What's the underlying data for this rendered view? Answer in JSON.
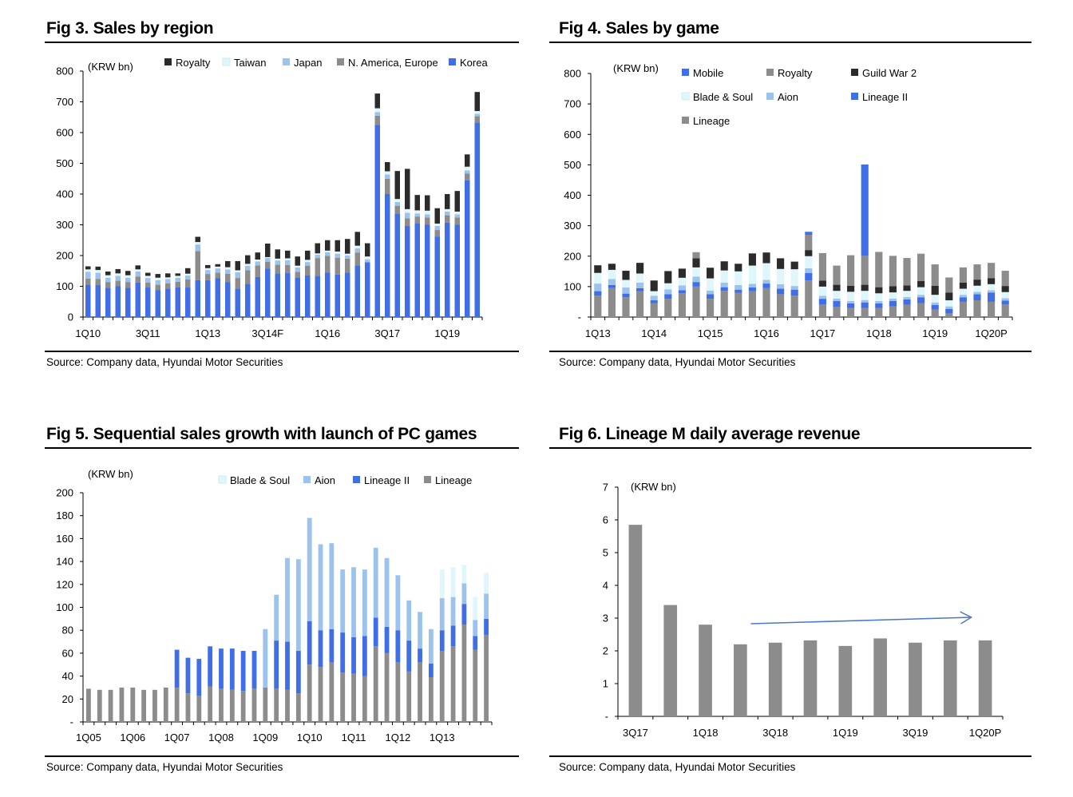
{
  "figures": [
    {
      "title": "Fig 3. Sales by region",
      "source": "Source: Company data, Hyundai Motor Securities",
      "chart_data": {
        "type": "bar",
        "stacked": true,
        "unit_label": "(KRW bn)",
        "yticks": [
          "0",
          "100",
          "200",
          "300",
          "400",
          "500",
          "600",
          "700",
          "800"
        ],
        "ylim": [
          0,
          800
        ],
        "xtick_labels": [
          {
            "i": 0,
            "label": "1Q10"
          },
          {
            "i": 6,
            "label": "3Q11"
          },
          {
            "i": 12,
            "label": "1Q13"
          },
          {
            "i": 18,
            "label": "3Q14F"
          },
          {
            "i": 24,
            "label": "1Q16"
          },
          {
            "i": 30,
            "label": "3Q17"
          },
          {
            "i": 36,
            "label": "1Q19"
          }
        ],
        "legend": [
          {
            "name": "Royalty",
            "color": "#2b2b2b"
          },
          {
            "name": "Taiwan",
            "color": "#dff7fb"
          },
          {
            "name": "Japan",
            "color": "#9cc3ee"
          },
          {
            "name": "N. America, Europe",
            "color": "#8c8c8c"
          },
          {
            "name": "Korea",
            "color": "#3f6ee6"
          }
        ],
        "series": [
          {
            "name": "Korea",
            "color": "#3f6ee6",
            "values": [
              105,
              104,
              95,
              100,
              95,
              112,
              96,
              88,
              92,
              97,
              96,
              120,
              120,
              126,
              113,
              92,
              108,
              130,
              158,
              142,
              143,
              129,
              135,
              134,
              145,
              138,
              145,
              168,
              178,
              625,
              400,
              337,
              296,
              305,
              300,
              262,
              307,
              300,
              445,
              633
            ]
          },
          {
            "name": "N. America, Europe",
            "color": "#8c8c8c",
            "values": [
              20,
              20,
              19,
              18,
              19,
              20,
              16,
              17,
              18,
              18,
              26,
              95,
              20,
              18,
              28,
              35,
              44,
              38,
              22,
              28,
              26,
              18,
              32,
              58,
              54,
              55,
              45,
              42,
              0,
              30,
              50,
              25,
              25,
              22,
              24,
              21,
              24,
              24,
              22,
              20
            ]
          },
          {
            "name": "Japan",
            "color": "#9cc3ee",
            "values": [
              22,
              20,
              14,
              16,
              14,
              16,
              15,
              15,
              14,
              13,
              13,
              21,
              13,
              14,
              14,
              19,
              15,
              13,
              12,
              14,
              16,
              14,
              12,
              11,
              12,
              13,
              10,
              14,
              10,
              12,
              14,
              12,
              18,
              10,
              10,
              13,
              12,
              10,
              10,
              8
            ]
          },
          {
            "name": "Taiwan",
            "color": "#dff7fb",
            "values": [
              8,
              9,
              8,
              8,
              8,
              7,
              7,
              8,
              5,
              6,
              6,
              8,
              6,
              6,
              7,
              6,
              6,
              6,
              3,
              6,
              6,
              6,
              7,
              4,
              5,
              7,
              6,
              8,
              9,
              12,
              10,
              10,
              12,
              10,
              12,
              8,
              8,
              9,
              12,
              9
            ]
          },
          {
            "name": "Royalty",
            "color": "#2b2b2b",
            "values": [
              10,
              11,
              12,
              14,
              14,
              13,
              10,
              12,
              13,
              8,
              18,
              17,
              10,
              8,
              20,
              30,
              28,
              23,
              44,
              30,
              25,
              30,
              30,
              33,
              34,
              37,
              48,
              45,
              43,
              48,
              30,
              91,
              131,
              50,
              50,
              50,
              49,
              67,
              40,
              62
            ]
          }
        ]
      }
    },
    {
      "title": "Fig 4. Sales by game",
      "source": "Source: Company data, Hyundai Motor Securities",
      "chart_data": {
        "type": "bar",
        "stacked": true,
        "unit_label": "(KRW bn)",
        "yticks": [
          "-",
          "100",
          "200",
          "300",
          "400",
          "500",
          "600",
          "700",
          "800"
        ],
        "ylim": [
          0,
          800
        ],
        "xtick_labels": [
          {
            "i": 0,
            "label": "1Q13"
          },
          {
            "i": 4,
            "label": "1Q14"
          },
          {
            "i": 8,
            "label": "1Q15"
          },
          {
            "i": 12,
            "label": "1Q16"
          },
          {
            "i": 16,
            "label": "1Q17"
          },
          {
            "i": 20,
            "label": "1Q18"
          },
          {
            "i": 24,
            "label": "1Q19"
          },
          {
            "i": 28,
            "label": "1Q20P"
          }
        ],
        "legend": [
          {
            "name": "Mobile",
            "color": "#3f6ee6"
          },
          {
            "name": "Royalty",
            "color": "#8c8c8c"
          },
          {
            "name": "Guild War 2",
            "color": "#2b2b2b"
          },
          {
            "name": "Blade & Soul",
            "color": "#dff7fb"
          },
          {
            "name": "Aion",
            "color": "#9cc3ee"
          },
          {
            "name": "Lineage II",
            "color": "#3f6ee6"
          },
          {
            "name": "Lineage",
            "color": "#8c8c8c"
          }
        ],
        "series": [
          {
            "name": "Lineage",
            "color": "#8c8c8c",
            "values": [
              70,
              95,
              65,
              85,
              45,
              60,
              78,
              100,
              60,
              86,
              80,
              85,
              95,
              75,
              70,
              120,
              42,
              33,
              30,
              30,
              30,
              35,
              40,
              45,
              25,
              12,
              50,
              55,
              50,
              42
            ]
          },
          {
            "name": "Lineage II",
            "color": "#3f6ee6",
            "values": [
              15,
              10,
              12,
              10,
              10,
              15,
              10,
              15,
              15,
              12,
              10,
              12,
              15,
              18,
              20,
              25,
              18,
              20,
              15,
              18,
              15,
              18,
              18,
              20,
              15,
              15,
              15,
              20,
              30,
              12
            ]
          },
          {
            "name": "Aion",
            "color": "#9cc3ee",
            "values": [
              25,
              20,
              20,
              18,
              15,
              16,
              16,
              18,
              12,
              15,
              15,
              12,
              12,
              15,
              12,
              15,
              10,
              8,
              8,
              8,
              8,
              8,
              8,
              8,
              8,
              8,
              8,
              8,
              8,
              8
            ]
          },
          {
            "name": "Blade & Soul",
            "color": "#dff7fb",
            "values": [
              35,
              30,
              25,
              30,
              15,
              20,
              25,
              30,
              40,
              40,
              45,
              60,
              55,
              50,
              55,
              40,
              30,
              25,
              30,
              30,
              25,
              20,
              20,
              25,
              25,
              20,
              20,
              20,
              20,
              20
            ]
          },
          {
            "name": "Guild War 2",
            "color": "#2b2b2b",
            "values": [
              25,
              20,
              30,
              35,
              35,
              40,
              30,
              30,
              35,
              30,
              25,
              40,
              35,
              35,
              25,
              20,
              20,
              20,
              20,
              20,
              20,
              20,
              18,
              20,
              30,
              25,
              20,
              20,
              20,
              20
            ]
          },
          {
            "name": "Royalty",
            "color": "#8c8c8c",
            "values": [
              0,
              0,
              0,
              0,
              0,
              0,
              0,
              20,
              0,
              0,
              0,
              0,
              0,
              0,
              0,
              50,
              90,
              63,
              100,
              95,
              116,
              100,
              90,
              90,
              70,
              50,
              50,
              50,
              50,
              50
            ]
          },
          {
            "name": "Mobile",
            "color": "#3f6ee6",
            "values": [
              0,
              0,
              0,
              0,
              0,
              0,
              0,
              0,
              0,
              0,
              0,
              0,
              0,
              0,
              0,
              10,
              0,
              0,
              0,
              300,
              0,
              0,
              0,
              0,
              0,
              0,
              0,
              0,
              0,
              0
            ]
          }
        ]
      }
    },
    {
      "title": "Fig 5. Sequential sales growth with launch of PC games",
      "source": "Source: Company data, Hyundai Motor Securities",
      "chart_data": {
        "type": "bar",
        "stacked": true,
        "unit_label": "(KRW bn)",
        "yticks": [
          "-",
          "20",
          "40",
          "60",
          "80",
          "100",
          "120",
          "140",
          "160",
          "180",
          "200"
        ],
        "ylim": [
          0,
          200
        ],
        "xtick_labels": [
          {
            "i": 0,
            "label": "1Q05"
          },
          {
            "i": 4,
            "label": "1Q06"
          },
          {
            "i": 8,
            "label": "1Q07"
          },
          {
            "i": 12,
            "label": "1Q08"
          },
          {
            "i": 16,
            "label": "1Q09"
          },
          {
            "i": 20,
            "label": "1Q10"
          },
          {
            "i": 24,
            "label": "1Q11"
          },
          {
            "i": 28,
            "label": "1Q12"
          },
          {
            "i": 32,
            "label": "1Q13"
          }
        ],
        "legend": [
          {
            "name": "Blade & Soul",
            "color": "#dff7fb"
          },
          {
            "name": "Aion",
            "color": "#9cc3ee"
          },
          {
            "name": "Lineage II",
            "color": "#3f6ee6"
          },
          {
            "name": "Lineage",
            "color": "#8c8c8c"
          }
        ],
        "series": [
          {
            "name": "Lineage",
            "color": "#8c8c8c",
            "values": [
              29,
              28,
              28,
              30,
              30,
              28,
              28,
              30,
              30,
              25,
              23,
              31,
              29,
              28,
              27,
              29,
              30,
              29,
              28,
              25,
              50,
              48,
              52,
              43,
              42,
              40,
              66,
              60,
              52,
              44,
              52,
              39,
              62,
              66,
              85,
              63,
              76
            ]
          },
          {
            "name": "Lineage II",
            "color": "#3f6ee6",
            "values": [
              0,
              0,
              0,
              0,
              0,
              0,
              0,
              0,
              33,
              31,
              32,
              35,
              35,
              36,
              35,
              33,
              0,
              42,
              42,
              37,
              38,
              32,
              29,
              35,
              32,
              35,
              25,
              23,
              28,
              27,
              12,
              12,
              18,
              18,
              18,
              12,
              14
            ]
          },
          {
            "name": "Aion",
            "color": "#9cc3ee",
            "values": [
              0,
              0,
              0,
              0,
              0,
              0,
              0,
              0,
              0,
              0,
              0,
              0,
              0,
              0,
              0,
              0,
              51,
              40,
              73,
              80,
              90,
              75,
              75,
              55,
              61,
              58,
              61,
              60,
              48,
              35,
              32,
              30,
              28,
              25,
              18,
              14,
              22
            ]
          },
          {
            "name": "Blade & Soul",
            "color": "#dff7fb",
            "values": [
              0,
              0,
              0,
              0,
              0,
              0,
              0,
              0,
              0,
              0,
              0,
              0,
              0,
              0,
              0,
              0,
              0,
              0,
              0,
              0,
              0,
              0,
              0,
              0,
              0,
              0,
              0,
              0,
              0,
              0,
              0,
              0,
              25,
              26,
              16,
              20,
              18
            ]
          }
        ]
      }
    },
    {
      "title": "Fig 6. Lineage M daily average revenue",
      "source": "Source: Company data, Hyundai Motor Securities",
      "chart_data": {
        "type": "bar",
        "stacked": false,
        "unit_label": "(KRW bn)",
        "yticks": [
          "-",
          "1",
          "2",
          "3",
          "4",
          "5",
          "6",
          "7"
        ],
        "ylim": [
          0,
          7
        ],
        "xtick_labels": [
          {
            "i": 0,
            "label": "3Q17"
          },
          {
            "i": 2,
            "label": "1Q18"
          },
          {
            "i": 4,
            "label": "3Q18"
          },
          {
            "i": 6,
            "label": "1Q19"
          },
          {
            "i": 8,
            "label": "3Q19"
          },
          {
            "i": 10,
            "label": "1Q20P"
          }
        ],
        "legend": [],
        "series": [
          {
            "name": "Lineage M daily average revenue",
            "color": "#8c8c8c",
            "values": [
              5.85,
              3.4,
              2.8,
              2.2,
              2.25,
              2.32,
              2.15,
              2.38,
              2.25,
              2.32,
              2.32
            ]
          }
        ],
        "trend_arrow": {
          "color": "#4a78c2"
        }
      }
    }
  ]
}
